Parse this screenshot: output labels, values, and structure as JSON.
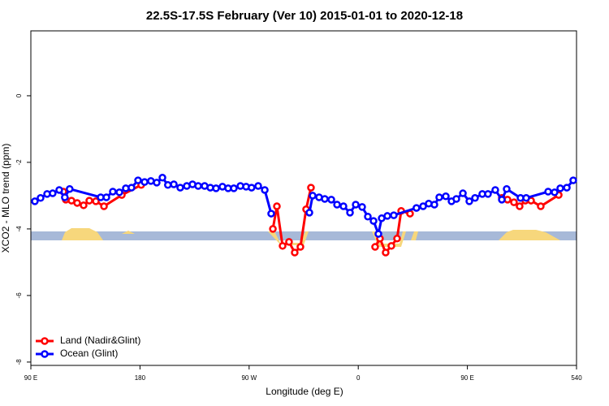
{
  "chart_data": {
    "type": "line",
    "title": "22.5S-17.5S February (Ver 10)   2015-01-01 to 2020-12-18",
    "x_label": "Longitude (deg E)",
    "y_label": "XCO2 - MLO trend (ppm)",
    "xlim": [
      90,
      540
    ],
    "xticks": [
      {
        "value": 90,
        "label": "90 E"
      },
      180,
      {
        "value": 270,
        "label": "90 W"
      },
      {
        "value": 360,
        "label": "0"
      },
      {
        "value": 450,
        "label": "90 E"
      },
      540
    ],
    "ylim": [
      -8.1,
      1.95
    ],
    "yticks": [
      0,
      -2,
      -4,
      -6,
      -8
    ],
    "legend": "bottomleft",
    "series": [
      {
        "name": "Land (Nadir&Glint)",
        "color": "#ff0000",
        "x": [
          116.8,
          118.8,
          123.5,
          128.2,
          133.5,
          138.2,
          143.6,
          150.3,
          165,
          181,
          null,
          289.6,
          292.9,
          297.6,
          302.9,
          307.6,
          312.3,
          317,
          321,
          null,
          373.9,
          377.9,
          382.6,
          387.3,
          392,
          395.4,
          402.7,
          null,
          478.4,
          483.1,
          488.4,
          493.1,
          497.8,
          502.5,
          510.5,
          525.3
        ],
        "values": [
          -2.88,
          -3.12,
          -3.15,
          -3.22,
          -3.29,
          -3.15,
          -3.17,
          -3.32,
          -2.98,
          -2.68,
          null,
          -4.0,
          -3.32,
          -4.51,
          -4.39,
          -4.71,
          -4.54,
          -3.41,
          -2.76,
          null,
          -4.54,
          -4.29,
          -4.71,
          -4.51,
          -4.29,
          -3.46,
          -3.54,
          null,
          -3.07,
          -3.12,
          -3.2,
          -3.32,
          -3.15,
          -3.15,
          -3.32,
          -2.98
        ]
      },
      {
        "name": "Ocean (Glint)",
        "color": "#0000ff",
        "x": [
          93.3,
          98,
          103.4,
          108,
          113.4,
          118,
          122,
          147.6,
          152.3,
          157.6,
          163,
          168.3,
          173,
          178.4,
          183.8,
          189,
          193.8,
          198.5,
          203,
          207.9,
          213.2,
          218.6,
          223.3,
          228,
          233.3,
          238,
          242.7,
          248,
          252.7,
          257.4,
          262.8,
          267.5,
          272,
          277.5,
          282.9,
          288.2,
          null,
          319.7,
          322.4,
          327.7,
          332.4,
          337.8,
          342.5,
          347.8,
          353.2,
          357.9,
          363.2,
          367.9,
          372.6,
          376.6,
          379.3,
          384,
          389.3,
          408,
          413.5,
          418.1,
          422.8,
          426.8,
          432.2,
          436.9,
          440.9,
          446.3,
          451.6,
          456.3,
          462.3,
          467,
          473,
          478.4,
          482.4,
          493.8,
          498.5,
          516.6,
          521.9,
          526.6,
          532,
          537.3
        ],
        "values": [
          -3.17,
          -3.07,
          -2.95,
          -2.93,
          -2.83,
          -3.05,
          -2.8,
          -3.05,
          -3.05,
          -2.88,
          -2.9,
          -2.78,
          -2.76,
          -2.54,
          -2.59,
          -2.56,
          -2.61,
          -2.46,
          -2.68,
          -2.66,
          -2.76,
          -2.71,
          -2.66,
          -2.71,
          -2.71,
          -2.76,
          -2.78,
          -2.73,
          -2.78,
          -2.78,
          -2.71,
          -2.73,
          -2.76,
          -2.71,
          -2.83,
          -3.54,
          null,
          -3.51,
          -3.0,
          -3.05,
          -3.1,
          -3.12,
          -3.27,
          -3.32,
          -3.51,
          -3.27,
          -3.34,
          -3.63,
          -3.76,
          -4.15,
          -3.68,
          -3.61,
          -3.59,
          -3.37,
          -3.32,
          -3.24,
          -3.27,
          -3.05,
          -3.02,
          -3.17,
          -3.1,
          -2.93,
          -3.17,
          -3.07,
          -2.95,
          -2.95,
          -2.83,
          -3.12,
          -2.8,
          -3.07,
          -3.07,
          -2.88,
          -2.9,
          -2.78,
          -2.76,
          -2.54
        ]
      }
    ]
  }
}
